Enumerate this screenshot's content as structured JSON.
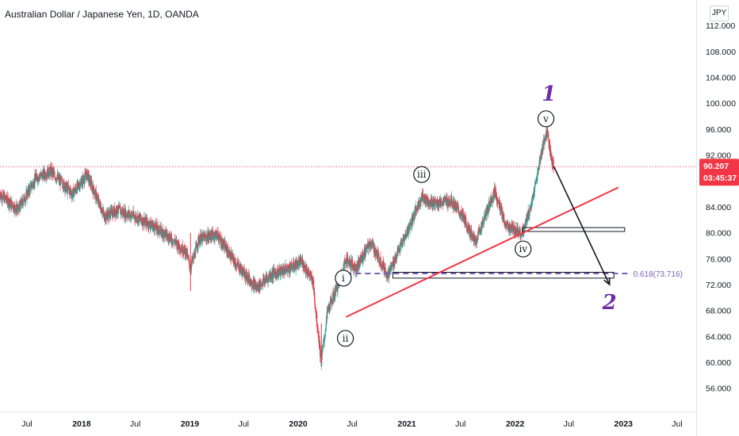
{
  "header": {
    "title": "Australian Dollar / Japanese Yen, 1D, OANDA",
    "currency_button": "JPY"
  },
  "price_badge": {
    "price": "90.207",
    "countdown": "03:45:37",
    "color": "#f23645"
  },
  "fib_label": "0.618(73.716)",
  "wave_labels": {
    "i": "i",
    "ii": "ii",
    "iii": "iii",
    "iv": "iv",
    "v": "v",
    "one": "1",
    "two": "2"
  },
  "colors": {
    "bull": "#26a69a",
    "bear": "#f23645",
    "trendline": "#f23645",
    "arrow": "#131722",
    "fib": "#7b5fb8",
    "wave_big": "#6b2fa3"
  },
  "chart_data": {
    "type": "candlestick",
    "title": "Australian Dollar / Japanese Yen, 1D, OANDA",
    "y_ticks": [
      "56.000",
      "60.000",
      "64.000",
      "68.000",
      "72.000",
      "76.000",
      "80.000",
      "84.000",
      "88.000",
      "92.000",
      "96.000",
      "100.000",
      "104.000",
      "108.000",
      "112.000"
    ],
    "ylim": [
      54.5,
      113
    ],
    "x_ticks": [
      {
        "label": "Jul",
        "year": false
      },
      {
        "label": "2018",
        "year": true
      },
      {
        "label": "Jul",
        "year": false
      },
      {
        "label": "2019",
        "year": true
      },
      {
        "label": "Jul",
        "year": false
      },
      {
        "label": "2020",
        "year": true
      },
      {
        "label": "Jul",
        "year": false
      },
      {
        "label": "2021",
        "year": true
      },
      {
        "label": "Jul",
        "year": false
      },
      {
        "label": "2022",
        "year": true
      },
      {
        "label": "Jul",
        "year": false
      },
      {
        "label": "2023",
        "year": true
      },
      {
        "label": "Jul",
        "year": false
      }
    ],
    "xlim": [
      "2017-04-01",
      "2023-11-01"
    ],
    "last_price": 90.207,
    "price_path": [
      [
        "2017-04-01",
        86.0
      ],
      [
        "2017-06-01",
        83.5
      ],
      [
        "2017-08-01",
        88.5
      ],
      [
        "2017-09-20",
        89.5
      ],
      [
        "2017-12-01",
        86.0
      ],
      [
        "2018-01-20",
        89.0
      ],
      [
        "2018-03-20",
        82.5
      ],
      [
        "2018-05-01",
        83.5
      ],
      [
        "2018-07-01",
        82.5
      ],
      [
        "2018-09-01",
        81.0
      ],
      [
        "2018-10-20",
        79.5
      ],
      [
        "2018-12-20",
        77.0
      ],
      [
        "2019-01-03",
        74.5
      ],
      [
        "2019-02-01",
        79.0
      ],
      [
        "2019-04-01",
        79.8
      ],
      [
        "2019-06-01",
        75.5
      ],
      [
        "2019-08-15",
        71.5
      ],
      [
        "2019-10-01",
        73.5
      ],
      [
        "2019-12-01",
        74.5
      ],
      [
        "2020-01-15",
        75.5
      ],
      [
        "2020-02-20",
        72.5
      ],
      [
        "2020-03-19",
        60.0
      ],
      [
        "2020-04-10",
        68.0
      ],
      [
        "2020-05-20",
        72.5
      ],
      [
        "2020-06-10",
        76.0
      ],
      [
        "2020-07-15",
        74.5
      ],
      [
        "2020-09-01",
        78.5
      ],
      [
        "2020-10-30",
        73.5
      ],
      [
        "2021-01-01",
        80.0
      ],
      [
        "2021-02-20",
        85.5
      ],
      [
        "2021-04-01",
        84.5
      ],
      [
        "2021-06-01",
        85.0
      ],
      [
        "2021-07-15",
        82.0
      ],
      [
        "2021-08-20",
        78.5
      ],
      [
        "2021-10-25",
        86.5
      ],
      [
        "2021-12-01",
        81.0
      ],
      [
        "2022-01-28",
        80.0
      ],
      [
        "2022-03-01",
        85.0
      ],
      [
        "2022-04-05",
        93.5
      ],
      [
        "2022-04-20",
        95.7
      ],
      [
        "2022-04-30",
        92.0
      ],
      [
        "2022-05-12",
        90.2
      ]
    ],
    "annotations": {
      "waves": [
        {
          "label": "i",
          "date": "2020-06-01",
          "price": 73.0
        },
        {
          "label": "ii",
          "date": "2020-06-08",
          "price": 63.7
        },
        {
          "label": "iii",
          "date": "2021-02-20",
          "price": 89.0
        },
        {
          "label": "iv",
          "date": "2022-01-28",
          "price": 77.5
        },
        {
          "label": "v",
          "date": "2022-04-15",
          "price": 97.6
        },
        {
          "label": "1",
          "date": "2022-04-25",
          "price": 101.5
        },
        {
          "label": "2",
          "date": "2022-11-15",
          "price": 69.3
        }
      ],
      "trendline": {
        "from": [
          "2020-06-10",
          67.0
        ],
        "to": [
          "2022-12-15",
          87.0
        ]
      },
      "fib_level": {
        "ratio": 0.618,
        "price": 73.716,
        "from": "2020-06-10",
        "to": "2022-11-15"
      },
      "zones": [
        {
          "from": "2022-01-25",
          "to": "2023-01-05",
          "low": 80.2,
          "high": 80.8
        },
        {
          "from": "2020-11-15",
          "to": "2022-11-30",
          "low": 73.0,
          "high": 73.9
        }
      ],
      "projection_arrow": {
        "from": [
          "2022-05-12",
          90.2
        ],
        "to": [
          "2022-11-15",
          72.0
        ]
      }
    }
  }
}
